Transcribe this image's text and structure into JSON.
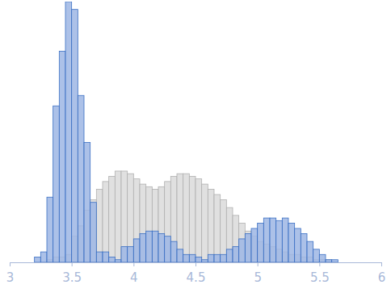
{
  "chart_data": {
    "type": "histogram",
    "bins": [
      3.2,
      3.25,
      3.3,
      3.35,
      3.4,
      3.45,
      3.5,
      3.55,
      3.6,
      3.65,
      3.7,
      3.75,
      3.8,
      3.85,
      3.9,
      3.95,
      4.0,
      4.05,
      4.1,
      4.15,
      4.2,
      4.25,
      4.3,
      4.35,
      4.4,
      4.45,
      4.5,
      4.55,
      4.6,
      4.65,
      4.7,
      4.75,
      4.8,
      4.85,
      4.9,
      4.95,
      5.0,
      5.05,
      5.1,
      5.15,
      5.2,
      5.25,
      5.3,
      5.35,
      5.4,
      5.45,
      5.5,
      5.55,
      5.6,
      5.65,
      5.7
    ],
    "series": [
      {
        "color": "#e0e0e0",
        "values": [
          0,
          0,
          1,
          2,
          2,
          3,
          10,
          14,
          20,
          24,
          28,
          31,
          33,
          35,
          35,
          34,
          32,
          30,
          29,
          28,
          29,
          31,
          33,
          34,
          34,
          33,
          32,
          30,
          28,
          26,
          24,
          21,
          18,
          15,
          12,
          10,
          8,
          7,
          6,
          5,
          4,
          3,
          3,
          2,
          2,
          1,
          1,
          1,
          0,
          0
        ]
      },
      {
        "color": "#9db6e4",
        "values": [
          2,
          4,
          25,
          60,
          81,
          100,
          97,
          64,
          46,
          23,
          4,
          4,
          2,
          1,
          6,
          6,
          9,
          11,
          12,
          12,
          11,
          10,
          8,
          5,
          3,
          3,
          2,
          1,
          3,
          3,
          3,
          5,
          6,
          9,
          11,
          13,
          15,
          17,
          17,
          16,
          17,
          15,
          13,
          11,
          8,
          5,
          3,
          1,
          1,
          0
        ]
      }
    ],
    "xlim": [
      3,
      6
    ],
    "xticks": [
      3,
      3.5,
      4,
      4.5,
      5,
      5.5,
      6
    ],
    "ylim": [
      0,
      100
    ],
    "tick_labels": "x"
  }
}
